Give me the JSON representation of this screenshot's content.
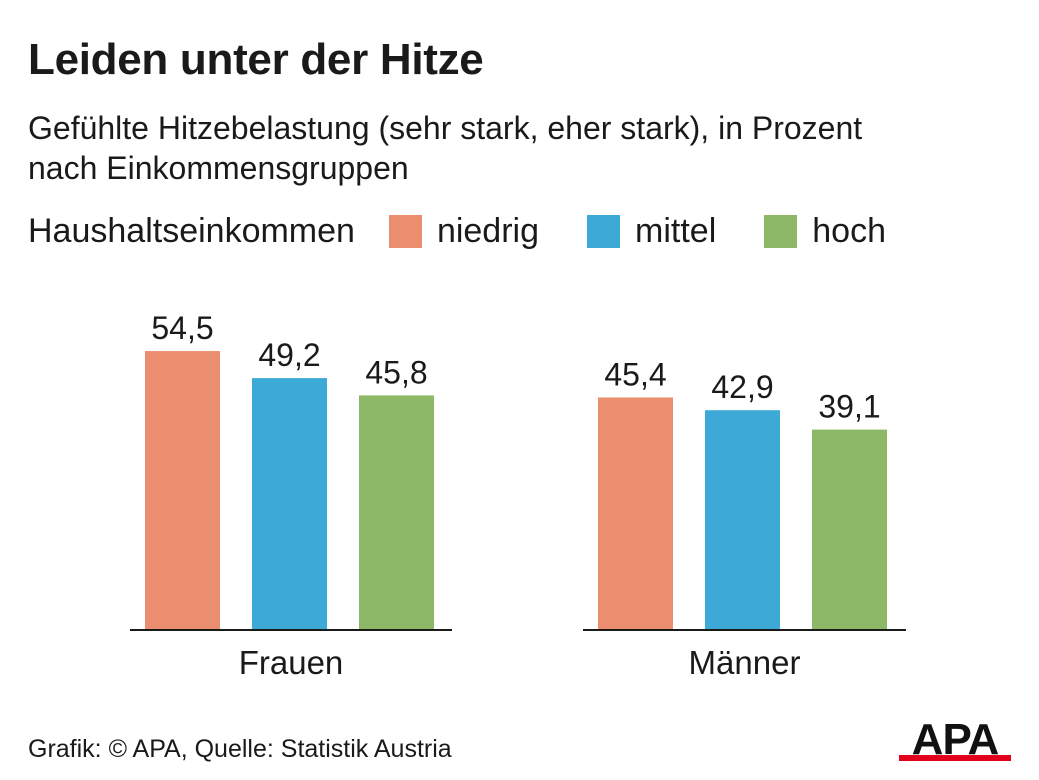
{
  "chart_data": {
    "type": "bar",
    "title": "Leiden unter der Hitze",
    "subtitle_lines": [
      "Gefühlte Hitzebelastung (sehr stark, eher stark), in Prozent",
      "nach Einkommensgruppen"
    ],
    "legend_title": "Haushaltseinkommen",
    "categories": [
      "Frauen",
      "Männer"
    ],
    "series": [
      {
        "name": "niedrig",
        "color": "#ea8e6f",
        "values": [
          54.5,
          45.4
        ]
      },
      {
        "name": "mittel",
        "color": "#3da9d7",
        "values": [
          49.2,
          42.9
        ]
      },
      {
        "name": "hoch",
        "color": "#8db867",
        "values": [
          45.8,
          39.1
        ]
      }
    ],
    "ylim": [
      0,
      60
    ],
    "grid": false,
    "legend_position": "top-left",
    "value_decimal_separator": ","
  },
  "footer": {
    "source": "Grafik: © APA, Quelle: Statistik Austria",
    "logo_text": "APA"
  }
}
